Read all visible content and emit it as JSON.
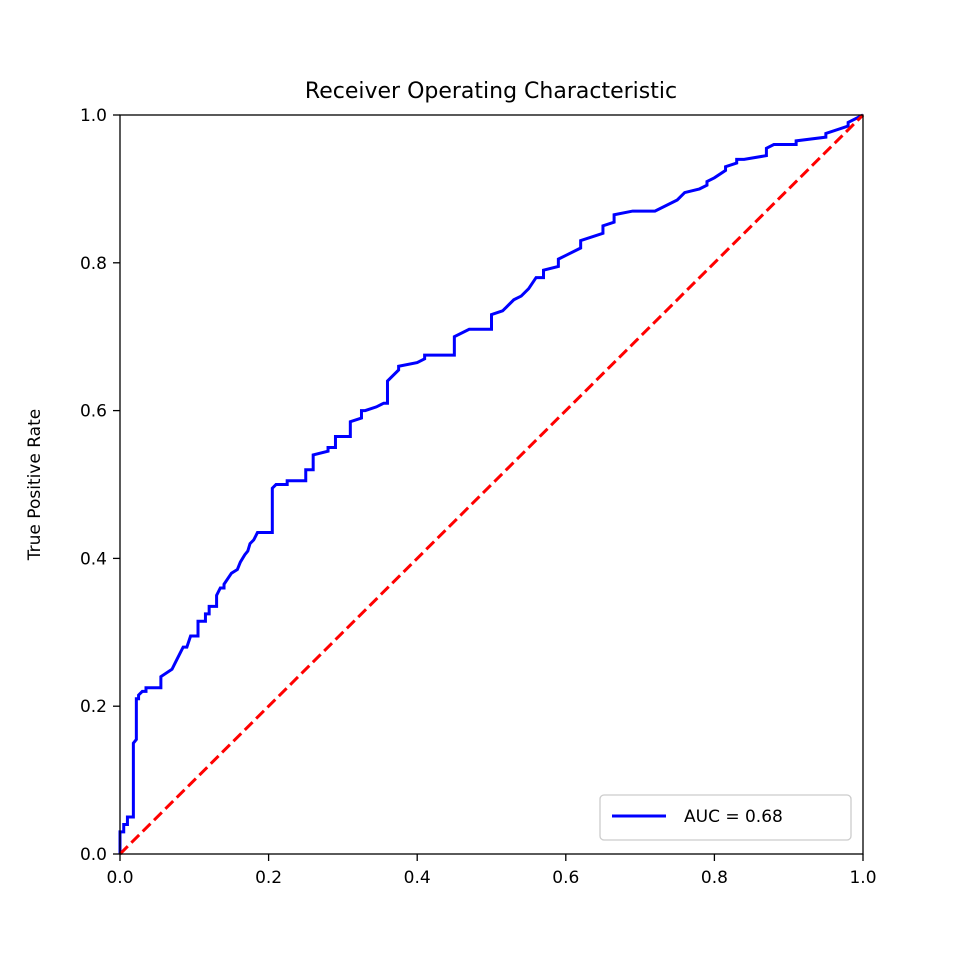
{
  "chart_data": {
    "type": "line",
    "title": "Receiver Operating Characteristic",
    "xlabel": "",
    "ylabel": "True Positive Rate",
    "xlim": [
      0.0,
      1.0
    ],
    "ylim": [
      0.0,
      1.0
    ],
    "xticks": [
      "0.0",
      "0.2",
      "0.4",
      "0.6",
      "0.8",
      "1.0"
    ],
    "yticks": [
      "0.0",
      "0.2",
      "0.4",
      "0.6",
      "0.8",
      "1.0"
    ],
    "grid": false,
    "legend_position": "lower-right",
    "series": [
      {
        "name": "AUC = 0.68",
        "color": "#0000ff",
        "style": "solid",
        "x": [
          0.0,
          0.0,
          0.005,
          0.005,
          0.01,
          0.01,
          0.018,
          0.018,
          0.022,
          0.022,
          0.025,
          0.025,
          0.03,
          0.035,
          0.035,
          0.04,
          0.055,
          0.055,
          0.07,
          0.075,
          0.08,
          0.085,
          0.09,
          0.095,
          0.095,
          0.105,
          0.105,
          0.115,
          0.115,
          0.12,
          0.12,
          0.13,
          0.13,
          0.135,
          0.14,
          0.14,
          0.15,
          0.158,
          0.162,
          0.168,
          0.172,
          0.175,
          0.18,
          0.185,
          0.19,
          0.198,
          0.205,
          0.205,
          0.21,
          0.225,
          0.225,
          0.25,
          0.25,
          0.26,
          0.26,
          0.28,
          0.28,
          0.29,
          0.29,
          0.31,
          0.31,
          0.325,
          0.325,
          0.33,
          0.345,
          0.355,
          0.36,
          0.36,
          0.375,
          0.375,
          0.4,
          0.41,
          0.41,
          0.45,
          0.45,
          0.47,
          0.5,
          0.5,
          0.515,
          0.52,
          0.53,
          0.54,
          0.55,
          0.56,
          0.57,
          0.57,
          0.59,
          0.59,
          0.6,
          0.62,
          0.62,
          0.65,
          0.65,
          0.665,
          0.665,
          0.69,
          0.72,
          0.75,
          0.76,
          0.78,
          0.79,
          0.79,
          0.8,
          0.815,
          0.815,
          0.83,
          0.83,
          0.84,
          0.87,
          0.87,
          0.88,
          0.91,
          0.91,
          0.95,
          0.95,
          0.98,
          0.98,
          1.0
        ],
        "y": [
          0.0,
          0.03,
          0.03,
          0.04,
          0.04,
          0.05,
          0.05,
          0.15,
          0.155,
          0.21,
          0.21,
          0.215,
          0.22,
          0.22,
          0.225,
          0.225,
          0.225,
          0.24,
          0.25,
          0.26,
          0.27,
          0.28,
          0.28,
          0.295,
          0.295,
          0.295,
          0.315,
          0.315,
          0.325,
          0.325,
          0.335,
          0.335,
          0.35,
          0.36,
          0.36,
          0.365,
          0.38,
          0.385,
          0.395,
          0.405,
          0.41,
          0.42,
          0.425,
          0.435,
          0.435,
          0.435,
          0.435,
          0.495,
          0.5,
          0.5,
          0.505,
          0.505,
          0.52,
          0.52,
          0.54,
          0.545,
          0.55,
          0.55,
          0.565,
          0.565,
          0.585,
          0.59,
          0.6,
          0.6,
          0.605,
          0.61,
          0.61,
          0.64,
          0.655,
          0.66,
          0.665,
          0.67,
          0.675,
          0.675,
          0.7,
          0.71,
          0.71,
          0.73,
          0.735,
          0.74,
          0.75,
          0.755,
          0.765,
          0.78,
          0.78,
          0.79,
          0.795,
          0.805,
          0.81,
          0.82,
          0.83,
          0.84,
          0.85,
          0.855,
          0.865,
          0.87,
          0.87,
          0.885,
          0.895,
          0.9,
          0.905,
          0.91,
          0.915,
          0.925,
          0.93,
          0.935,
          0.94,
          0.94,
          0.945,
          0.955,
          0.96,
          0.96,
          0.965,
          0.97,
          0.975,
          0.985,
          0.99,
          1.0
        ]
      },
      {
        "name": "",
        "color": "#ff0000",
        "style": "dashed",
        "x": [
          0.0,
          1.0
        ],
        "y": [
          0.0,
          1.0
        ]
      }
    ]
  }
}
